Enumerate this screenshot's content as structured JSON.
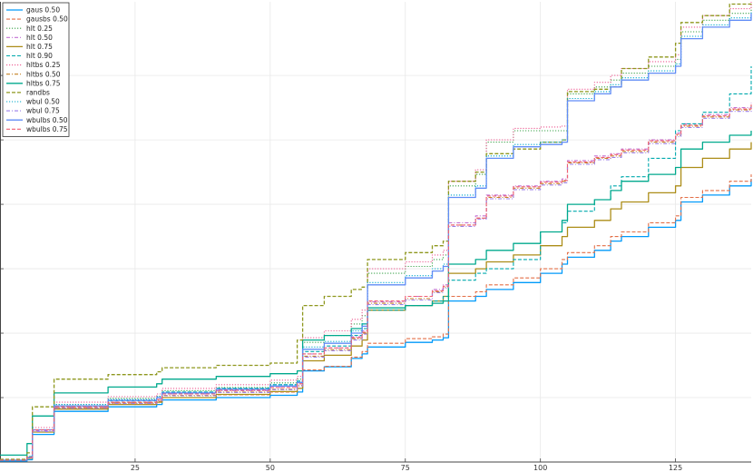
{
  "chart_data": {
    "type": "line",
    "title": "",
    "xlabel": "",
    "ylabel": "",
    "xlim": [
      0,
      139
    ],
    "ylim": [
      0,
      1
    ],
    "xticks": [
      25,
      50,
      75,
      100,
      125
    ],
    "yticks": [
      0.14,
      0.28,
      0.42,
      0.56,
      0.7,
      0.84
    ],
    "grid": true,
    "legend_position": "top-left",
    "x": [
      0,
      5,
      6,
      10,
      20,
      29,
      30,
      40,
      50,
      55,
      56,
      60,
      65,
      67,
      68,
      75,
      80,
      82,
      83,
      88,
      90,
      95,
      100,
      104,
      105,
      110,
      113,
      115,
      120,
      125,
      126,
      130,
      135,
      139
    ],
    "series": [
      {
        "name": "gaus 0.50",
        "color": "#009AFA",
        "dash": "solid",
        "width": 1.3,
        "values": [
          0.002,
          0.005,
          0.06,
          0.11,
          0.12,
          0.125,
          0.135,
          0.14,
          0.145,
          0.152,
          0.198,
          0.207,
          0.225,
          0.235,
          0.25,
          0.26,
          0.265,
          0.27,
          0.35,
          0.36,
          0.375,
          0.39,
          0.41,
          0.43,
          0.445,
          0.46,
          0.48,
          0.49,
          0.51,
          0.525,
          0.565,
          0.58,
          0.6,
          0.615
        ]
      },
      {
        "name": "gausbs 0.50",
        "color": "#E36F47",
        "dash": "dash",
        "width": 1.1,
        "values": [
          0.004,
          0.008,
          0.065,
          0.118,
          0.128,
          0.132,
          0.14,
          0.146,
          0.152,
          0.16,
          0.2,
          0.208,
          0.228,
          0.24,
          0.258,
          0.268,
          0.272,
          0.278,
          0.36,
          0.37,
          0.385,
          0.4,
          0.42,
          0.44,
          0.455,
          0.47,
          0.49,
          0.5,
          0.52,
          0.535,
          0.575,
          0.59,
          0.61,
          0.625
        ]
      },
      {
        "name": "hlt 0.25",
        "color": "#3EA44E",
        "dash": "dot",
        "width": 1.1,
        "values": [
          0.004,
          0.01,
          0.07,
          0.125,
          0.138,
          0.143,
          0.155,
          0.162,
          0.172,
          0.18,
          0.26,
          0.275,
          0.3,
          0.318,
          0.41,
          0.425,
          0.44,
          0.45,
          0.6,
          0.625,
          0.695,
          0.72,
          0.72,
          0.72,
          0.8,
          0.815,
          0.83,
          0.845,
          0.86,
          0.875,
          0.935,
          0.96,
          0.975,
          0.99
        ]
      },
      {
        "name": "hlt 0.50",
        "color": "#C271D2",
        "dash": "dashdot",
        "width": 1.1,
        "values": [
          0.004,
          0.01,
          0.068,
          0.12,
          0.13,
          0.137,
          0.148,
          0.155,
          0.162,
          0.17,
          0.235,
          0.248,
          0.272,
          0.285,
          0.348,
          0.36,
          0.375,
          0.385,
          0.52,
          0.535,
          0.58,
          0.6,
          0.61,
          0.615,
          0.655,
          0.665,
          0.67,
          0.68,
          0.7,
          0.715,
          0.735,
          0.755,
          0.77,
          0.78
        ]
      },
      {
        "name": "hlt 0.75",
        "color": "#AC8D18",
        "dash": "solid",
        "width": 1.3,
        "values": [
          0.004,
          0.008,
          0.065,
          0.115,
          0.125,
          0.13,
          0.14,
          0.147,
          0.153,
          0.16,
          0.22,
          0.232,
          0.252,
          0.265,
          0.33,
          0.34,
          0.35,
          0.36,
          0.41,
          0.42,
          0.435,
          0.45,
          0.47,
          0.49,
          0.51,
          0.525,
          0.55,
          0.565,
          0.585,
          0.6,
          0.64,
          0.66,
          0.68,
          0.695
        ]
      },
      {
        "name": "hlt 0.90",
        "color": "#00A9AD",
        "dash": "dash",
        "width": 1.1,
        "values": [
          0.004,
          0.012,
          0.07,
          0.122,
          0.133,
          0.14,
          0.152,
          0.16,
          0.168,
          0.176,
          0.24,
          0.252,
          0.275,
          0.29,
          0.33,
          0.34,
          0.35,
          0.36,
          0.395,
          0.41,
          0.42,
          0.44,
          0.5,
          0.52,
          0.545,
          0.57,
          0.6,
          0.62,
          0.66,
          0.72,
          0.735,
          0.76,
          0.8,
          0.86
        ]
      },
      {
        "name": "hltbs 0.25",
        "color": "#ED5E93",
        "dash": "dot",
        "width": 1.1,
        "values": [
          0.004,
          0.011,
          0.075,
          0.13,
          0.142,
          0.148,
          0.16,
          0.168,
          0.178,
          0.186,
          0.27,
          0.285,
          0.31,
          0.33,
          0.42,
          0.435,
          0.45,
          0.46,
          0.61,
          0.635,
          0.7,
          0.725,
          0.728,
          0.73,
          0.81,
          0.825,
          0.84,
          0.855,
          0.87,
          0.885,
          0.945,
          0.97,
          0.985,
          1.0
        ]
      },
      {
        "name": "hltbs 0.50",
        "color": "#C68225",
        "dash": "dashdot",
        "width": 1.1,
        "values": [
          0.004,
          0.009,
          0.066,
          0.118,
          0.128,
          0.134,
          0.145,
          0.152,
          0.158,
          0.166,
          0.23,
          0.244,
          0.268,
          0.28,
          0.345,
          0.355,
          0.37,
          0.38,
          0.515,
          0.53,
          0.575,
          0.595,
          0.605,
          0.61,
          0.65,
          0.66,
          0.665,
          0.675,
          0.695,
          0.71,
          0.73,
          0.75,
          0.765,
          0.775
        ]
      },
      {
        "name": "hltbs 0.75",
        "color": "#00A98D",
        "dash": "solid",
        "width": 1.3,
        "values": [
          0.015,
          0.04,
          0.1,
          0.15,
          0.163,
          0.17,
          0.18,
          0.186,
          0.192,
          0.198,
          0.265,
          0.275,
          0.29,
          0.3,
          0.335,
          0.34,
          0.345,
          0.35,
          0.43,
          0.44,
          0.46,
          0.475,
          0.5,
          0.525,
          0.56,
          0.57,
          0.59,
          0.61,
          0.625,
          0.64,
          0.68,
          0.695,
          0.71,
          0.72
        ]
      },
      {
        "name": "randbs",
        "color": "#8E971D",
        "dash": "dash",
        "width": 1.3,
        "values": [
          0.006,
          0.02,
          0.12,
          0.18,
          0.19,
          0.196,
          0.205,
          0.21,
          0.215,
          0.265,
          0.34,
          0.36,
          0.375,
          0.38,
          0.44,
          0.455,
          0.47,
          0.48,
          0.61,
          0.63,
          0.67,
          0.68,
          0.695,
          0.7,
          0.805,
          0.81,
          0.815,
          0.855,
          0.88,
          0.91,
          0.955,
          0.97,
          0.995,
          1.0
        ]
      },
      {
        "name": "wbul 0.50",
        "color": "#00A8CB",
        "dash": "dot",
        "width": 1.1,
        "values": [
          0.004,
          0.01,
          0.07,
          0.125,
          0.136,
          0.142,
          0.152,
          0.16,
          0.168,
          0.176,
          0.25,
          0.262,
          0.285,
          0.3,
          0.39,
          0.405,
          0.42,
          0.43,
          0.58,
          0.6,
          0.665,
          0.69,
          0.695,
          0.7,
          0.79,
          0.805,
          0.82,
          0.835,
          0.85,
          0.865,
          0.925,
          0.95,
          0.965,
          0.98
        ]
      },
      {
        "name": "wbul 0.75",
        "color": "#9B7FE9",
        "dash": "dashdot",
        "width": 1.1,
        "values": [
          0.004,
          0.009,
          0.066,
          0.117,
          0.127,
          0.133,
          0.144,
          0.151,
          0.157,
          0.165,
          0.228,
          0.242,
          0.265,
          0.278,
          0.342,
          0.352,
          0.368,
          0.378,
          0.512,
          0.528,
          0.572,
          0.592,
          0.602,
          0.607,
          0.647,
          0.657,
          0.662,
          0.672,
          0.692,
          0.707,
          0.727,
          0.747,
          0.762,
          0.772
        ]
      },
      {
        "name": "wbulbs 0.50",
        "color": "#608CF6",
        "dash": "solid",
        "width": 1.3,
        "values": [
          0.004,
          0.01,
          0.07,
          0.122,
          0.134,
          0.14,
          0.15,
          0.158,
          0.165,
          0.173,
          0.245,
          0.258,
          0.28,
          0.295,
          0.385,
          0.4,
          0.415,
          0.425,
          0.575,
          0.595,
          0.66,
          0.685,
          0.69,
          0.695,
          0.785,
          0.8,
          0.815,
          0.83,
          0.845,
          0.86,
          0.92,
          0.945,
          0.96,
          0.975
        ]
      },
      {
        "name": "wbulbs 0.75",
        "color": "#F05F73",
        "dash": "dash",
        "width": 1.1,
        "values": [
          0.004,
          0.01,
          0.07,
          0.12,
          0.13,
          0.136,
          0.148,
          0.156,
          0.162,
          0.17,
          0.235,
          0.248,
          0.27,
          0.282,
          0.35,
          0.36,
          0.372,
          0.382,
          0.515,
          0.53,
          0.578,
          0.598,
          0.608,
          0.612,
          0.652,
          0.662,
          0.668,
          0.678,
          0.698,
          0.712,
          0.732,
          0.752,
          0.767,
          0.777
        ]
      }
    ]
  }
}
